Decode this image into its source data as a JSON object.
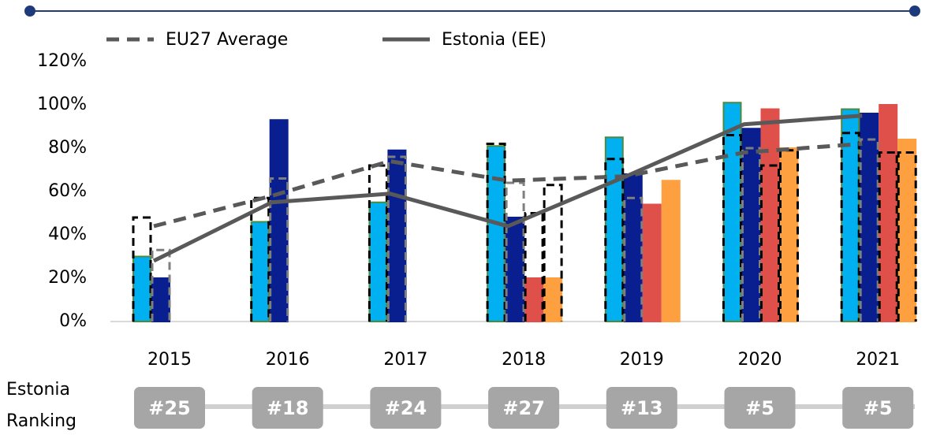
{
  "chart_data": {
    "type": "bar",
    "categories": [
      "2015",
      "2016",
      "2017",
      "2018",
      "2019",
      "2020",
      "2021"
    ],
    "ylim": [
      0,
      120
    ],
    "yticks": [
      {
        "value": 0,
        "label": "0%"
      },
      {
        "value": 20,
        "label": "20%"
      },
      {
        "value": 40,
        "label": "40%"
      },
      {
        "value": 60,
        "label": "60%"
      },
      {
        "value": 80,
        "label": "80%"
      },
      {
        "value": 100,
        "label": "100%"
      },
      {
        "value": 120,
        "label": "120%"
      }
    ],
    "series": [
      {
        "kind": "bar",
        "color": "#00b0f0",
        "outline": "#4e8a3e",
        "values": [
          30,
          46,
          55,
          81,
          85,
          101,
          98
        ]
      },
      {
        "kind": "bar",
        "color": "#0a1f8f",
        "outline": "#0a1f8f",
        "values": [
          20,
          93,
          79,
          48,
          68,
          89,
          96
        ]
      },
      {
        "kind": "bar",
        "color": "#e0504b",
        "outline": "#e0504b",
        "values": [
          null,
          null,
          null,
          20,
          54,
          98,
          100
        ]
      },
      {
        "kind": "bar",
        "color": "#ffa040",
        "outline": "#ffa040",
        "values": [
          null,
          null,
          null,
          20,
          65,
          80,
          84
        ]
      },
      {
        "kind": "outline",
        "color": "#000000",
        "values": [
          48,
          57,
          72,
          82,
          75,
          86,
          87
        ]
      },
      {
        "kind": "outline",
        "color": "#7f7f7f",
        "values": [
          33,
          66,
          76,
          64,
          57,
          80,
          84
        ]
      },
      {
        "kind": "outline",
        "color": "#000000",
        "values": [
          null,
          null,
          null,
          50,
          null,
          72,
          78
        ]
      },
      {
        "kind": "outline",
        "color": "#000000",
        "values": [
          null,
          null,
          null,
          63,
          null,
          79,
          78
        ]
      },
      {
        "kind": "line",
        "name": "EU27 Average",
        "color": "#595959",
        "style": "dashed",
        "values": [
          44,
          58,
          74,
          65,
          67,
          78,
          82
        ]
      },
      {
        "kind": "line",
        "name": "Estonia (EE)",
        "color": "#595959",
        "style": "solid",
        "values": [
          28,
          55,
          59,
          44,
          67,
          91,
          95
        ]
      }
    ],
    "ranking_label": [
      "Estonia",
      "Ranking"
    ],
    "rankings": [
      "#25",
      "#18",
      "#24",
      "#27",
      "#13",
      "#5",
      "#5"
    ]
  }
}
